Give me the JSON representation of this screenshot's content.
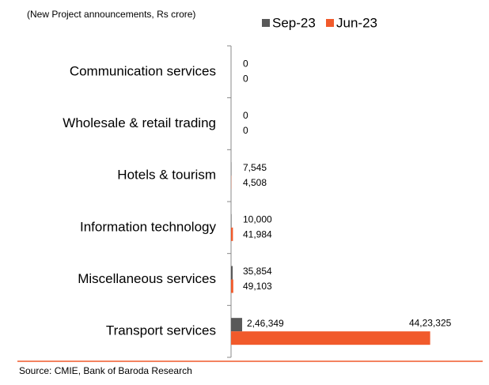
{
  "chart_data": {
    "type": "bar",
    "orientation": "horizontal",
    "subtitle": "(New Project announcements, Rs crore)",
    "categories": [
      "Communication services",
      "Wholesale & retail trading",
      "Hotels & tourism",
      "Information technology",
      "Miscellaneous services",
      "Transport services"
    ],
    "series": [
      {
        "name": "Sep-23",
        "color": "#595959",
        "values": [
          0,
          0,
          7545,
          10000,
          35854,
          246349
        ],
        "value_labels": [
          "0",
          "0",
          "7,545",
          "10,000",
          "35,854",
          "2,46,349"
        ]
      },
      {
        "name": "Jun-23",
        "color": "#f15a2b",
        "values": [
          0,
          0,
          4508,
          41984,
          49103,
          4423325
        ],
        "value_labels": [
          "0",
          "0",
          "4,508",
          "41,984",
          "49,103",
          "44,23,325"
        ]
      }
    ],
    "xlim": [
      0,
      4500000
    ],
    "legend": "top-right",
    "source": "Source: CMIE, Bank of Baroda Research"
  }
}
